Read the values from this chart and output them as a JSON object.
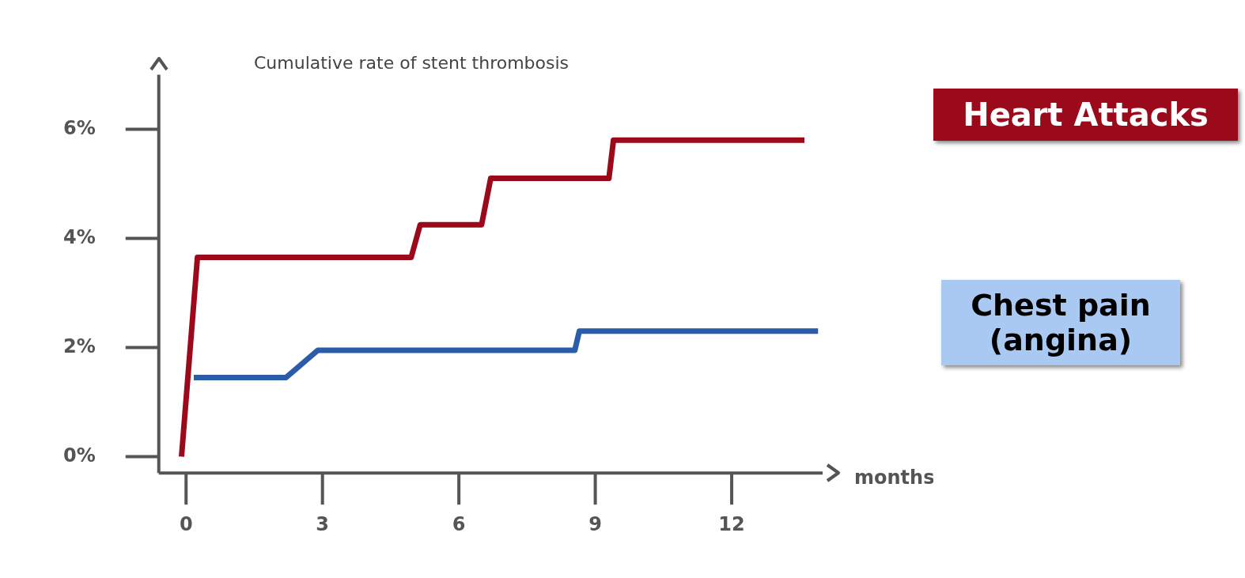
{
  "chart_data": {
    "type": "line",
    "title": "Cumulative rate of stent thrombosis",
    "xlabel": "months",
    "xlim": [
      -0.6,
      14
    ],
    "ylim": [
      -0.3,
      7
    ],
    "xticks": [
      0,
      3,
      6,
      9,
      12
    ],
    "yticks": [
      {
        "value": 0,
        "label": "0%"
      },
      {
        "value": 2,
        "label": "2%"
      },
      {
        "value": 4,
        "label": "4%"
      },
      {
        "value": 6,
        "label": "6%"
      }
    ],
    "grid": false,
    "legend": false,
    "marker": "none",
    "line_style": "solid",
    "series": [
      {
        "name": "Heart Attacks",
        "color": "#9b0a1a",
        "x": [
          -0.1,
          0.25,
          4.95,
          5.15,
          6.5,
          6.7,
          9.3,
          9.4,
          13.6
        ],
        "values": [
          0,
          3.65,
          3.65,
          4.25,
          4.25,
          5.1,
          5.1,
          5.8,
          5.8
        ]
      },
      {
        "name": "Chest pain (angina)",
        "color": "#2a5ca8",
        "x": [
          0.17,
          2.2,
          2.9,
          8.55,
          8.65,
          13.9
        ],
        "values": [
          1.45,
          1.45,
          1.95,
          1.95,
          2.3,
          2.3
        ]
      }
    ]
  }
}
